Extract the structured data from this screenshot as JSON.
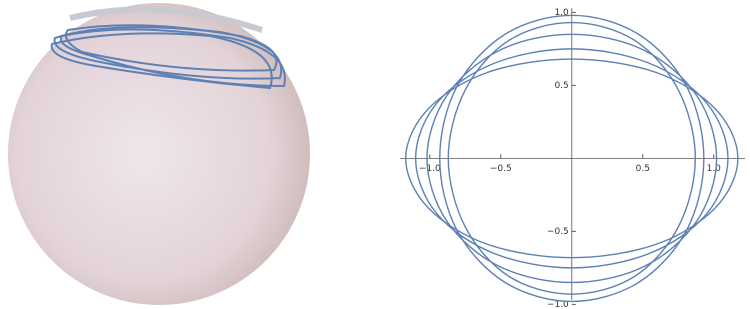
{
  "chart_data": {
    "type": "parametric",
    "color": "#5e81b5",
    "xlim": [
      -1.21,
      1.22
    ],
    "ylim": [
      -0.97,
      1.03
    ],
    "xticks": [
      {
        "value": -1,
        "label": "−1.0"
      },
      {
        "value": -0.5,
        "label": "−0.5"
      },
      0.5,
      {
        "value": 1,
        "label": "1.0"
      }
    ],
    "yticks": [
      {
        "value": -1,
        "label": "−1.0"
      },
      {
        "value": -0.5,
        "label": "−0.5"
      },
      0.5,
      {
        "value": 1,
        "label": "1.0"
      }
    ],
    "series": [
      {
        "x": [
          1.17,
          1.01,
          0.59,
          0,
          -0.59,
          -1.01,
          -1.17,
          -1.01,
          -0.59,
          0,
          0.59,
          1.01,
          1.17
        ],
        "y": [
          0,
          0.34,
          0.59,
          0.68,
          0.59,
          0.34,
          0,
          -0.34,
          -0.59,
          -0.68,
          -0.59,
          -0.34,
          0
        ]
      },
      {
        "x": [
          1.1,
          0.95,
          0.55,
          0,
          -0.55,
          -0.95,
          -1.1,
          -0.95,
          -0.55,
          0,
          0.55,
          0.95,
          1.1
        ],
        "y": [
          0,
          0.38,
          0.65,
          0.75,
          0.65,
          0.38,
          0,
          -0.38,
          -0.65,
          -0.75,
          -0.65,
          -0.38,
          0
        ]
      },
      {
        "x": [
          0.93,
          0.81,
          0.47,
          0,
          -0.47,
          -0.81,
          -0.93,
          -0.81,
          -0.47,
          0,
          0.47,
          0.81,
          0.93
        ],
        "y": [
          0,
          0.49,
          0.85,
          0.98,
          0.85,
          0.49,
          0,
          -0.49,
          -0.85,
          -0.98,
          -0.85,
          -0.49,
          0
        ]
      },
      {
        "x": [
          0.87,
          0.75,
          0.44,
          0,
          -0.44,
          -0.75,
          -0.87,
          -0.75,
          -0.44,
          0,
          0.44,
          0.75,
          0.87
        ],
        "y": [
          0,
          0.47,
          0.81,
          0.93,
          0.81,
          0.47,
          0,
          -0.47,
          -0.81,
          -0.93,
          -0.81,
          -0.47,
          0
        ]
      },
      {
        "x": [
          1.02,
          0.88,
          0.51,
          0,
          -0.51,
          -0.88,
          -1.02,
          -0.88,
          -0.51,
          0,
          0.51,
          0.88,
          1.02
        ],
        "y": [
          0,
          0.43,
          0.74,
          0.85,
          0.74,
          0.43,
          0,
          -0.43,
          -0.74,
          -0.85,
          -0.74,
          -0.43,
          0
        ]
      }
    ]
  }
}
